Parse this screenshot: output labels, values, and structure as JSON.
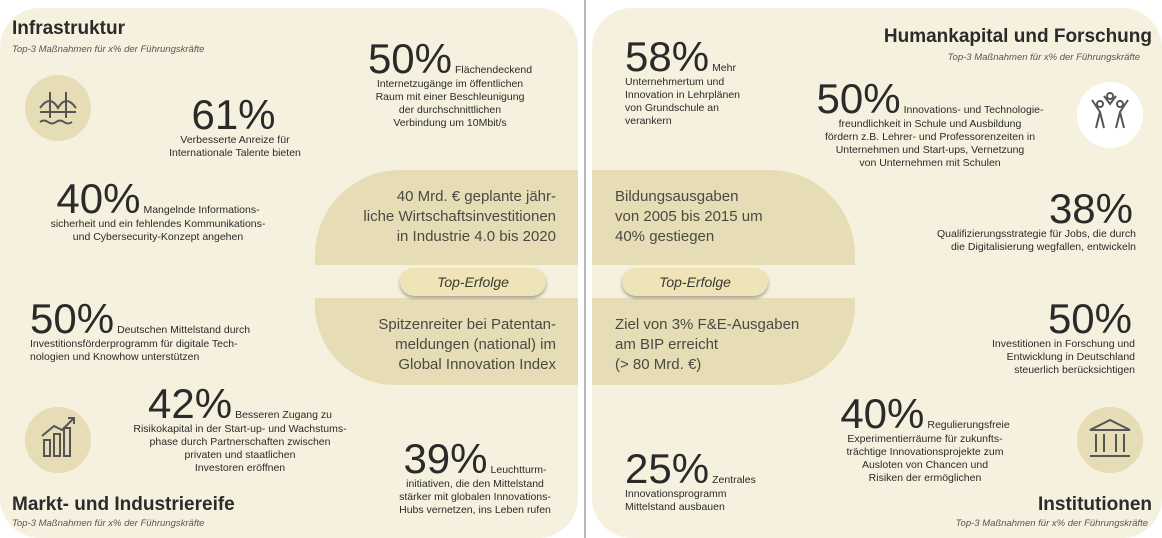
{
  "quadrants": [
    {
      "title": "Infrastruktur",
      "subtitle": "Top-3 Maßnahmen für x% der Führungskräfte",
      "items": [
        {
          "pct": "50%",
          "text": "Flächendeckend\nInternetzugänge im öffentlichen\nRaum mit einer Beschleunigung\nder durchschnittlichen\nVerbindung um 10Mbit/s"
        },
        {
          "pct": "61%",
          "text": "Verbesserte Anreize für\nInternationale Talente bieten"
        },
        {
          "pct": "40%",
          "text": "Mangelnde Informations-\nsicherheit und ein fehlendes Kommunikations-\nund Cybersecurity-Konzept angehen"
        }
      ],
      "success": "40 Mrd. € geplante jähr-\nliche Wirtschaftsinvestitionen\nin Industrie 4.0 bis 2020"
    },
    {
      "title": "Humankapital und Forschung",
      "subtitle": "Top-3 Maßnahmen für x% der Führungskräfte",
      "items": [
        {
          "pct": "58%",
          "text": "Mehr\nUnternehmertum und\nInnovation in Lehrplänen\nvon Grundschule an\nverankern"
        },
        {
          "pct": "50%",
          "text": "Innovations- und Technologie-\nfreundlichkeit in Schule und Ausbildung\nfördern z.B. Lehrer- und Professorenzeiten in\nUnternehmen und Start-ups, Vernetzung\nvon Unternehmen mit Schulen"
        },
        {
          "pct": "38%",
          "text": "Qualifizierungsstrategie für Jobs, die durch\ndie Digitalisierung wegfallen, entwickeln"
        }
      ],
      "success": "Bildungsausgaben\nvon 2005 bis 2015 um\n40% gestiegen"
    },
    {
      "title": "Markt- und Industriereife",
      "subtitle": "Top-3 Maßnahmen für x% der Führungskräfte",
      "items": [
        {
          "pct": "50%",
          "text": "Deutschen Mittelstand durch\nInvestitionsförderprogramm für digitale Tech-\nnologien und Knowhow unterstützen"
        },
        {
          "pct": "42%",
          "text": "Besseren Zugang zu\nRisikokapital in der Start-up- und Wachstums-\nphase durch Partnerschaften zwischen\nprivaten und staatlichen\nInvestoren eröffnen"
        },
        {
          "pct": "39%",
          "text": "Leuchtturm-\ninitiativen, die den Mittelstand\nstärker mit globalen Innovations-\nHubs vernetzen, ins Leben rufen"
        }
      ],
      "success": "Spitzenreiter bei Patentan-\nmeldungen (national) im\nGlobal Innovation Index"
    },
    {
      "title": "Institutionen",
      "subtitle": "Top-3 Maßnahmen für x% der Führungskräfte",
      "items": [
        {
          "pct": "50%",
          "text": "Investitionen in Forschung und\nEntwicklung in Deutschland\nsteuerlich berücksichtigen"
        },
        {
          "pct": "40%",
          "text": "Regulierungsfreie\nExperimentierräume für zukunfts-\nträchtige Innovationsprojekte zum\nAusloten von Chancen und\nRisiken der ermöglichen"
        },
        {
          "pct": "25%",
          "text": "Zentrales\nInnovationsprogramm\nMittelstand ausbauen"
        }
      ],
      "success": "Ziel von 3% F&E-Ausgaben\nam BIP erreicht\n(> 80 Mrd. €)"
    }
  ],
  "badges": [
    "Top-Erfolge",
    "Top-Erfolge"
  ]
}
